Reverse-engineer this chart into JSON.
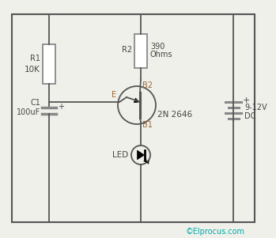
{
  "bg_color": "#f0f0ea",
  "border_color": "#555555",
  "wire_color": "#555555",
  "component_color": "#888888",
  "label_color_brown": "#996633",
  "label_color_black": "#444444",
  "cyan_color": "#00AAAA",
  "copyright": "©Elprocus.com",
  "R1_label": "R1",
  "R1_value": "10K",
  "R2_label": "R2",
  "R2_value1": "390",
  "R2_value2": "Ohms",
  "C1_label": "C1",
  "C1_value": "100uF",
  "battery_label1": "9-12V",
  "battery_label2": "DC",
  "transistor_label": "2N 2646",
  "B2_label": "B2",
  "B1_label": "B1",
  "E_label": "E",
  "LED_label": "LED"
}
